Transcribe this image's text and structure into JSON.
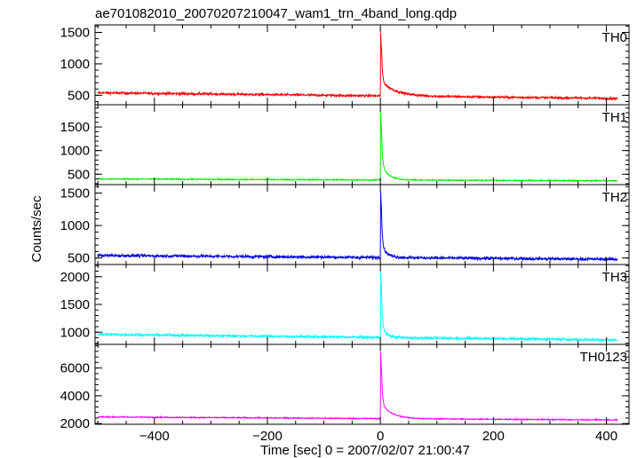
{
  "chart_data": {
    "type": "line",
    "title": "ae701082010_20070207210047_wam1_trn_4band_long.qdp",
    "xlabel": "Time [sec] 0 = 2007/02/07 21:00:47",
    "ylabel": "Counts/sec",
    "xlim": [
      -505,
      440
    ],
    "x_ticks": [
      -400,
      -200,
      0,
      200,
      400
    ],
    "x_tick_labels": [
      "−400",
      "−200",
      "0",
      "200",
      "400"
    ],
    "panels": [
      {
        "name": "TH0",
        "color": "#ff0000",
        "ylim": [
          350,
          1620
        ],
        "yticks": [
          500,
          1000,
          1500
        ],
        "baseline_start": 540,
        "baseline_end": 450,
        "noise": 18,
        "peak": 1600,
        "decay_amp": 230,
        "decay_tau": 25
      },
      {
        "name": "TH1",
        "color": "#00ee00",
        "ylim": [
          280,
          1970
        ],
        "yticks": [
          500,
          1000,
          1500
        ],
        "baseline_start": 400,
        "baseline_end": 360,
        "noise": 12,
        "peak": 1950,
        "decay_amp": 320,
        "decay_tau": 12
      },
      {
        "name": "TH2",
        "color": "#0000dd",
        "ylim": [
          400,
          1630
        ],
        "yticks": [
          500,
          1000,
          1500
        ],
        "baseline_start": 540,
        "baseline_end": 480,
        "noise": 22,
        "peak": 1620,
        "decay_amp": 180,
        "decay_tau": 10
      },
      {
        "name": "TH3",
        "color": "#00ffff",
        "ylim": [
          780,
          2220
        ],
        "yticks": [
          1000,
          1500,
          2000
        ],
        "baseline_start": 960,
        "baseline_end": 860,
        "noise": 22,
        "peak": 2200,
        "decay_amp": 200,
        "decay_tau": 8
      },
      {
        "name": "TH0123",
        "color": "#ff00ff",
        "ylim": [
          1950,
          7700
        ],
        "yticks": [
          2000,
          4000,
          6000
        ],
        "baseline_start": 2480,
        "baseline_end": 2260,
        "noise": 40,
        "peak": 7600,
        "decay_amp": 1100,
        "decay_tau": 18
      }
    ]
  }
}
